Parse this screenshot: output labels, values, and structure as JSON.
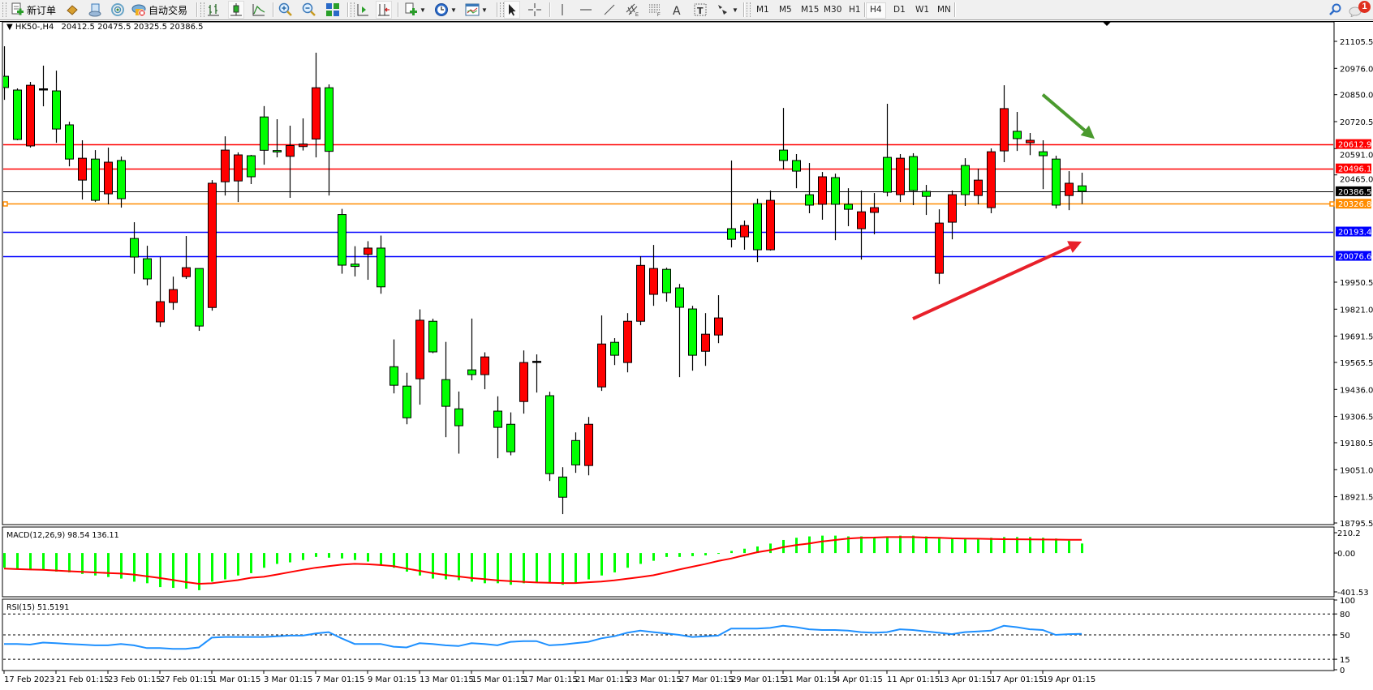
{
  "toolbar": {
    "new_order_label": "新订单",
    "auto_trading_label": "自动交易",
    "timeframes": [
      "M1",
      "M5",
      "M15",
      "M30",
      "H1",
      "H4",
      "D1",
      "W1",
      "MN"
    ],
    "active_timeframe": "H4",
    "notification_count": "1",
    "icons": [
      "new-order-icon",
      "market-watch-icon",
      "navigator-icon",
      "signals-icon",
      "auto-trading-icon",
      "bar-chart-icon",
      "candlestick-icon",
      "line-chart-icon",
      "zoom-in-icon",
      "zoom-out-icon",
      "tile-windows-icon",
      "auto-scroll-icon",
      "chart-shift-icon",
      "indicators-icon",
      "periods-icon",
      "templates-icon",
      "cursor-icon",
      "crosshair-icon",
      "vertical-line-icon",
      "horizontal-line-icon",
      "trendline-icon",
      "equidistant-channel-icon",
      "fibonacci-icon",
      "text-icon",
      "text-label-icon",
      "arrows-icon",
      "search-icon",
      "notifications-icon"
    ]
  },
  "chart_header": {
    "symbol": "HK50-,H4",
    "ohlc": "20412.5 20475.5 20325.5 20386.5"
  },
  "chart_data": {
    "type": "candlestick",
    "symbol": "HK50-",
    "timeframe": "H4",
    "bullish_color": "#ff0000",
    "bearish_color": "#00ff00",
    "ylim": [
      18795.5,
      21105.5
    ],
    "price_ticks": [
      "21105.5",
      "20976.0",
      "20850.0",
      "20720.5",
      "20591.0",
      "20465.0",
      "19950.5",
      "19821.0",
      "19691.5",
      "19565.5",
      "19436.0",
      "19306.5",
      "19180.5",
      "19051.0",
      "18921.5",
      "18795.5"
    ],
    "x_tick_labels": [
      "17 Feb 2023",
      "21 Feb 01:15",
      "23 Feb 01:15",
      "27 Feb 01:15",
      "1 Mar 01:15",
      "3 Mar 01:15",
      "7 Mar 01:15",
      "9 Mar 01:15",
      "13 Mar 01:15",
      "15 Mar 01:15",
      "17 Mar 01:15",
      "21 Mar 01:15",
      "23 Mar 01:15",
      "27 Mar 01:15",
      "29 Mar 01:15",
      "31 Mar 01:15",
      "4 Apr 01:15",
      "11 Apr 01:15",
      "13 Apr 01:15",
      "17 Apr 01:15",
      "19 Apr 01:15"
    ],
    "candles_ohlc": [
      [
        20938,
        21082,
        20825,
        20884
      ],
      [
        20872,
        20880,
        20631,
        20635
      ],
      [
        20604,
        20911,
        20596,
        20895
      ],
      [
        20876,
        20989,
        20794,
        20876
      ],
      [
        20868,
        20965,
        20619,
        20685
      ],
      [
        20705,
        20720,
        20506,
        20541
      ],
      [
        20440,
        20631,
        20347,
        20545
      ],
      [
        20541,
        20584,
        20335,
        20343
      ],
      [
        20374,
        20596,
        20324,
        20526
      ],
      [
        20534,
        20553,
        20308,
        20351
      ],
      [
        20160,
        20238,
        19991,
        20071
      ],
      [
        20063,
        20125,
        19935,
        19966
      ],
      [
        19760,
        20071,
        19736,
        19857
      ],
      [
        19853,
        19977,
        19818,
        19915
      ],
      [
        19977,
        20172,
        19966,
        20020
      ],
      [
        20016,
        20016,
        19717,
        19740
      ],
      [
        19829,
        20440,
        19814,
        20425
      ],
      [
        20432,
        20650,
        20366,
        20584
      ],
      [
        20436,
        20573,
        20335,
        20561
      ],
      [
        20557,
        20561,
        20421,
        20456
      ],
      [
        20743,
        20795,
        20514,
        20583
      ],
      [
        20582,
        20732,
        20549,
        20575
      ],
      [
        20554,
        20701,
        20355,
        20606
      ],
      [
        20601,
        20736,
        20582,
        20613
      ],
      [
        20637,
        21051,
        20549,
        20883
      ],
      [
        20883,
        20899,
        20366,
        20578
      ],
      [
        20275,
        20302,
        19991,
        20032
      ],
      [
        20037,
        20123,
        19978,
        20026
      ],
      [
        20084,
        20147,
        19962,
        20114
      ],
      [
        20114,
        20174,
        19895,
        19928
      ],
      [
        19545,
        19676,
        19417,
        19456
      ],
      [
        19452,
        19516,
        19269,
        19300
      ],
      [
        19487,
        19820,
        19363,
        19768
      ],
      [
        19763,
        19775,
        19610,
        19616
      ],
      [
        19483,
        19664,
        19207,
        19355
      ],
      [
        19343,
        19426,
        19128,
        19262
      ],
      [
        19530,
        19776,
        19480,
        19507
      ],
      [
        19507,
        19614,
        19437,
        19592
      ],
      [
        19332,
        19403,
        19106,
        19254
      ],
      [
        19269,
        19326,
        19120,
        19137
      ],
      [
        19378,
        19623,
        19320,
        19565
      ],
      [
        19569,
        19604,
        19421,
        19569
      ],
      [
        19406,
        19425,
        18997,
        19032
      ],
      [
        19016,
        19063,
        18838,
        18919
      ],
      [
        19191,
        19230,
        19036,
        19074
      ],
      [
        19071,
        19304,
        19024,
        19269
      ],
      [
        19448,
        19791,
        19429,
        19654
      ],
      [
        19662,
        19682,
        19553,
        19600
      ],
      [
        19565,
        19802,
        19518,
        19763
      ],
      [
        19763,
        20075,
        19744,
        20031
      ],
      [
        19892,
        20129,
        19837,
        20016
      ],
      [
        20012,
        20020,
        19857,
        19900
      ],
      [
        19923,
        19942,
        19495,
        19830
      ],
      [
        19822,
        19837,
        19526,
        19600
      ],
      [
        19619,
        19802,
        19549,
        19701
      ],
      [
        19697,
        19888,
        19658,
        19779
      ],
      [
        20207,
        20534,
        20117,
        20156
      ],
      [
        20168,
        20246,
        20106,
        20222
      ],
      [
        20327,
        20351,
        20047,
        20106
      ],
      [
        20106,
        20390,
        20102,
        20343
      ],
      [
        20584,
        20786,
        20491,
        20534
      ],
      [
        20534,
        20565,
        20401,
        20483
      ],
      [
        20370,
        20522,
        20281,
        20320
      ],
      [
        20324,
        20479,
        20250,
        20456
      ],
      [
        20452,
        20471,
        20152,
        20324
      ],
      [
        20324,
        20401,
        20219,
        20300
      ],
      [
        20207,
        20390,
        20059,
        20288
      ],
      [
        20285,
        20378,
        20180,
        20308
      ],
      [
        20549,
        20806,
        20362,
        20382
      ],
      [
        20370,
        20565,
        20335,
        20545
      ],
      [
        20553,
        20569,
        20320,
        20390
      ],
      [
        20386,
        20417,
        20273,
        20362
      ],
      [
        19993,
        20300,
        19942,
        20234
      ],
      [
        20238,
        20390,
        20156,
        20370
      ],
      [
        20510,
        20545,
        20316,
        20370
      ],
      [
        20366,
        20495,
        20324,
        20440
      ],
      [
        20308,
        20592,
        20281,
        20576
      ],
      [
        20580,
        20895,
        20526,
        20783
      ],
      [
        20674,
        20767,
        20580,
        20639
      ],
      [
        20619,
        20666,
        20560,
        20631
      ],
      [
        20576,
        20631,
        20397,
        20557
      ],
      [
        20541,
        20557,
        20304,
        20320
      ],
      [
        20366,
        20483,
        20296,
        20425
      ],
      [
        20412.5,
        20475.5,
        20325.5,
        20386.5
      ]
    ],
    "horizontal_lines": [
      {
        "price": "20612.9",
        "color": "#ff0000"
      },
      {
        "price": "20496.1",
        "color": "#ff0000"
      },
      {
        "price": "20386.5",
        "color": "#000000"
      },
      {
        "price": "20326.8",
        "color": "#ff8c00"
      },
      {
        "price": "20193.4",
        "color": "#0000ff"
      },
      {
        "price": "20076.6",
        "color": "#0000ff"
      }
    ],
    "annotations": [
      {
        "type": "arrow",
        "direction": "down-right",
        "color": "#4a9a2e",
        "from": {
          "candle": 80,
          "price": 20850
        },
        "to": {
          "candle": 84,
          "price": 20638
        }
      },
      {
        "type": "arrow",
        "direction": "up-right",
        "color": "#e8202a",
        "from": {
          "candle": 70,
          "price": 19775
        },
        "to": {
          "candle": 83,
          "price": 20145
        }
      }
    ],
    "macd": {
      "label": "MACD(12,26,9) 98.54 136.11",
      "axis_ticks": [
        "210.2",
        "0.00",
        "-401.53"
      ],
      "ylim": [
        -401.53,
        210.2
      ],
      "histogram_color": "#00ff00",
      "signal_color": "#ff0000",
      "histogram": [
        -152,
        -168,
        -176,
        -168,
        -192,
        -200,
        -216,
        -232,
        -248,
        -264,
        -296,
        -312,
        -352,
        -360,
        -368,
        -384,
        -296,
        -272,
        -232,
        -208,
        -152,
        -112,
        -96,
        -72,
        -40,
        -48,
        -56,
        -72,
        -88,
        -120,
        -152,
        -192,
        -232,
        -264,
        -272,
        -280,
        -296,
        -312,
        -312,
        -328,
        -312,
        -304,
        -312,
        -328,
        -312,
        -272,
        -232,
        -200,
        -152,
        -112,
        -80,
        -40,
        -40,
        -32,
        -24,
        -8,
        22,
        45,
        68,
        98,
        135,
        158,
        172,
        180,
        180,
        172,
        172,
        165,
        172,
        180,
        180,
        172,
        165,
        158,
        150,
        150,
        158,
        165,
        165,
        165,
        158,
        150,
        128,
        98.54
      ],
      "signal": [
        -160,
        -166,
        -170,
        -174,
        -180,
        -188,
        -194,
        -200,
        -206,
        -212,
        -222,
        -240,
        -258,
        -278,
        -300,
        -318,
        -313,
        -296,
        -280,
        -256,
        -246,
        -222,
        -198,
        -174,
        -152,
        -136,
        -120,
        -112,
        -116,
        -124,
        -136,
        -160,
        -184,
        -208,
        -226,
        -242,
        -258,
        -270,
        -282,
        -290,
        -298,
        -304,
        -308,
        -310,
        -310,
        -302,
        -294,
        -282,
        -266,
        -248,
        -230,
        -200,
        -170,
        -142,
        -114,
        -82,
        -56,
        -24,
        8,
        30,
        60,
        82,
        98,
        120,
        135,
        150,
        158,
        160,
        165,
        165,
        165,
        160,
        158,
        152,
        150,
        148,
        145,
        143,
        142,
        141,
        140,
        139,
        137,
        136.11
      ]
    },
    "rsi": {
      "label": "RSI(15) 51.5191",
      "axis_ticks": [
        "100",
        "80",
        "50",
        "15",
        "0"
      ],
      "levels": [
        80,
        50,
        15
      ],
      "color": "#1e90ff",
      "values": [
        37,
        37,
        36,
        39,
        38,
        37,
        36,
        35,
        35,
        37,
        35,
        31,
        31,
        30,
        30,
        32,
        46,
        47,
        47,
        47,
        47,
        48,
        49,
        49,
        52,
        54,
        45,
        37,
        37,
        37,
        33,
        32,
        38,
        37,
        35,
        34,
        38,
        37,
        35,
        40,
        41,
        41,
        35,
        36,
        38,
        40,
        45,
        48,
        53,
        56,
        54,
        52,
        50,
        47,
        48,
        49,
        59,
        59,
        59,
        60,
        63,
        61,
        58,
        57,
        57,
        56,
        54,
        53,
        54,
        58,
        57,
        55,
        53,
        51,
        54,
        55,
        56,
        63,
        61,
        58,
        57,
        50,
        51,
        51.5191
      ]
    }
  }
}
